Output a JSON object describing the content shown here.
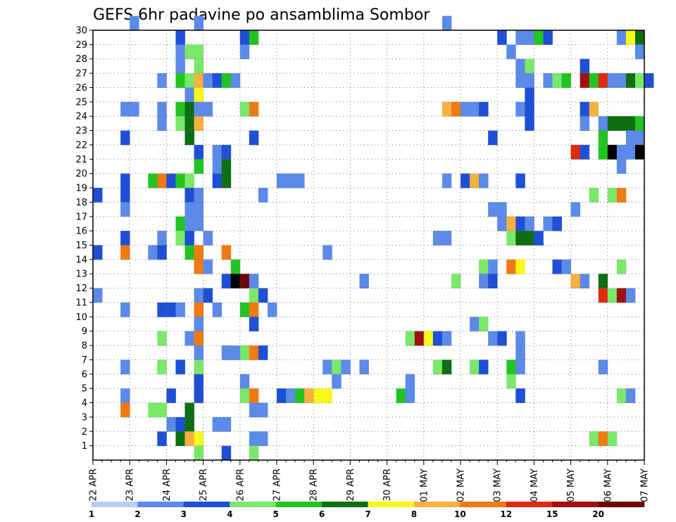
{
  "chart_data": {
    "type": "heatmap",
    "title": "GEFS 6hr padavine po ansamblima Sombor",
    "xlabel": "",
    "ylabel": "",
    "x_tick_labels": [
      "22 APR",
      "23 APR",
      "24 APR",
      "25 APR",
      "26 APR",
      "27 APR",
      "28 APR",
      "29 APR",
      "30 APR",
      "01 MAY",
      "02 MAY",
      "03 MAY",
      "04 MAY",
      "05 MAY",
      "06 MAY",
      "07 MAY"
    ],
    "x_steps_per_day": 4,
    "x_step_hours": 6,
    "x_range_steps": [
      0,
      60
    ],
    "y_tick_labels": [
      "1",
      "2",
      "3",
      "4",
      "5",
      "6",
      "7",
      "8",
      "9",
      "10",
      "11",
      "12",
      "13",
      "14",
      "15",
      "16",
      "17",
      "18",
      "19",
      "20",
      "21",
      "22",
      "23",
      "24",
      "25",
      "26",
      "27",
      "28",
      "29",
      "30"
    ],
    "y_range": [
      0,
      30
    ],
    "grid": true,
    "colorbar": {
      "position": "bottom",
      "levels": [
        "1",
        "2",
        "3",
        "4",
        "5",
        "6",
        "7",
        "8",
        "10",
        "12",
        "15",
        "20"
      ],
      "colors": [
        "#b8cdf5",
        "#5b8ae8",
        "#1f4fd6",
        "#7ae86a",
        "#22c422",
        "#0d6e12",
        "#f8f81a",
        "#f8b040",
        "#f07a12",
        "#e02810",
        "#a01010",
        "#6a0a0a"
      ]
    },
    "cells": [
      [
        30,
        4,
        1
      ],
      [
        30,
        11,
        1
      ],
      [
        30,
        38,
        1
      ],
      [
        29,
        9,
        2
      ],
      [
        29,
        16,
        2
      ],
      [
        29,
        17,
        4
      ],
      [
        29,
        44,
        2
      ],
      [
        29,
        46,
        1
      ],
      [
        29,
        47,
        1
      ],
      [
        29,
        48,
        4
      ],
      [
        29,
        49,
        2
      ],
      [
        29,
        57,
        1
      ],
      [
        29,
        58,
        6
      ],
      [
        29,
        59,
        5
      ],
      [
        28,
        9,
        1
      ],
      [
        28,
        10,
        3
      ],
      [
        28,
        11,
        3
      ],
      [
        28,
        16,
        1
      ],
      [
        28,
        45,
        1
      ],
      [
        28,
        59,
        1
      ],
      [
        27,
        9,
        1
      ],
      [
        27,
        11,
        3
      ],
      [
        27,
        46,
        1
      ],
      [
        27,
        47,
        3
      ],
      [
        27,
        53,
        2
      ],
      [
        26,
        7,
        1
      ],
      [
        26,
        9,
        4
      ],
      [
        26,
        10,
        3
      ],
      [
        26,
        11,
        7
      ],
      [
        26,
        12,
        1
      ],
      [
        26,
        13,
        2
      ],
      [
        26,
        14,
        4
      ],
      [
        26,
        15,
        1
      ],
      [
        26,
        46,
        1
      ],
      [
        26,
        47,
        1
      ],
      [
        26,
        49,
        1
      ],
      [
        26,
        50,
        3
      ],
      [
        26,
        51,
        4
      ],
      [
        26,
        53,
        10
      ],
      [
        26,
        54,
        4
      ],
      [
        26,
        55,
        9
      ],
      [
        26,
        56,
        1
      ],
      [
        26,
        57,
        1
      ],
      [
        26,
        58,
        5
      ],
      [
        26,
        59,
        3
      ],
      [
        26,
        60,
        2
      ],
      [
        25,
        10,
        1
      ],
      [
        25,
        11,
        6
      ],
      [
        25,
        47,
        2
      ],
      [
        24,
        3,
        1
      ],
      [
        24,
        4,
        1
      ],
      [
        24,
        7,
        1
      ],
      [
        24,
        9,
        4
      ],
      [
        24,
        10,
        5
      ],
      [
        24,
        11,
        1
      ],
      [
        24,
        12,
        1
      ],
      [
        24,
        16,
        3
      ],
      [
        24,
        17,
        8
      ],
      [
        24,
        38,
        7
      ],
      [
        24,
        39,
        8
      ],
      [
        24,
        40,
        1
      ],
      [
        24,
        41,
        1
      ],
      [
        24,
        42,
        2
      ],
      [
        24,
        46,
        1
      ],
      [
        24,
        47,
        2
      ],
      [
        24,
        53,
        2
      ],
      [
        24,
        54,
        7
      ],
      [
        23,
        7,
        1
      ],
      [
        23,
        9,
        3
      ],
      [
        23,
        10,
        5
      ],
      [
        23,
        11,
        7
      ],
      [
        23,
        47,
        2
      ],
      [
        23,
        53,
        1
      ],
      [
        23,
        55,
        1
      ],
      [
        23,
        56,
        5
      ],
      [
        23,
        57,
        5
      ],
      [
        23,
        58,
        5
      ],
      [
        23,
        59,
        4
      ],
      [
        22,
        3,
        2
      ],
      [
        22,
        10,
        5
      ],
      [
        22,
        17,
        2
      ],
      [
        22,
        43,
        2
      ],
      [
        22,
        55,
        4
      ],
      [
        22,
        58,
        1
      ],
      [
        22,
        59,
        1
      ],
      [
        21,
        11,
        2
      ],
      [
        21,
        13,
        1
      ],
      [
        21,
        14,
        2
      ],
      [
        21,
        52,
        9
      ],
      [
        21,
        53,
        2
      ],
      [
        21,
        55,
        4
      ],
      [
        21,
        56,
        12
      ],
      [
        21,
        57,
        1
      ],
      [
        21,
        58,
        1
      ],
      [
        21,
        59,
        12
      ],
      [
        20,
        11,
        4
      ],
      [
        20,
        13,
        1
      ],
      [
        20,
        14,
        5
      ],
      [
        20,
        57,
        1
      ],
      [
        19,
        3,
        2
      ],
      [
        19,
        6,
        4
      ],
      [
        19,
        7,
        8
      ],
      [
        19,
        8,
        2
      ],
      [
        19,
        9,
        4
      ],
      [
        19,
        10,
        3
      ],
      [
        19,
        13,
        2
      ],
      [
        19,
        14,
        5
      ],
      [
        19,
        20,
        1
      ],
      [
        19,
        21,
        1
      ],
      [
        19,
        22,
        1
      ],
      [
        19,
        38,
        1
      ],
      [
        19,
        40,
        2
      ],
      [
        19,
        41,
        7
      ],
      [
        19,
        42,
        1
      ],
      [
        19,
        46,
        2
      ],
      [
        18,
        0,
        2
      ],
      [
        18,
        3,
        2
      ],
      [
        18,
        10,
        2
      ],
      [
        18,
        11,
        1
      ],
      [
        18,
        18,
        1
      ],
      [
        18,
        54,
        3
      ],
      [
        18,
        56,
        3
      ],
      [
        18,
        57,
        8
      ],
      [
        17,
        3,
        1
      ],
      [
        17,
        10,
        1
      ],
      [
        17,
        11,
        1
      ],
      [
        17,
        43,
        1
      ],
      [
        17,
        44,
        1
      ],
      [
        17,
        52,
        1
      ],
      [
        16,
        9,
        4
      ],
      [
        16,
        10,
        1
      ],
      [
        16,
        11,
        1
      ],
      [
        16,
        44,
        1
      ],
      [
        16,
        45,
        7
      ],
      [
        16,
        46,
        2
      ],
      [
        16,
        47,
        1
      ],
      [
        16,
        49,
        1
      ],
      [
        16,
        50,
        2
      ],
      [
        15,
        3,
        2
      ],
      [
        15,
        7,
        1
      ],
      [
        15,
        9,
        3
      ],
      [
        15,
        10,
        2
      ],
      [
        15,
        12,
        1
      ],
      [
        15,
        37,
        1
      ],
      [
        15,
        38,
        1
      ],
      [
        15,
        45,
        3
      ],
      [
        15,
        46,
        5
      ],
      [
        15,
        47,
        5
      ],
      [
        15,
        48,
        2
      ],
      [
        14,
        0,
        2
      ],
      [
        14,
        3,
        8
      ],
      [
        14,
        6,
        1
      ],
      [
        14,
        7,
        2
      ],
      [
        14,
        10,
        4
      ],
      [
        14,
        11,
        8
      ],
      [
        14,
        14,
        8
      ],
      [
        14,
        25,
        1
      ],
      [
        13,
        11,
        8
      ],
      [
        13,
        12,
        1
      ],
      [
        13,
        15,
        4
      ],
      [
        13,
        42,
        3
      ],
      [
        13,
        43,
        1
      ],
      [
        13,
        45,
        8
      ],
      [
        13,
        46,
        6
      ],
      [
        13,
        50,
        2
      ],
      [
        13,
        51,
        1
      ],
      [
        13,
        57,
        3
      ],
      [
        12,
        14,
        2
      ],
      [
        12,
        15,
        12
      ],
      [
        12,
        16,
        11
      ],
      [
        12,
        17,
        1
      ],
      [
        12,
        29,
        1
      ],
      [
        12,
        39,
        3
      ],
      [
        12,
        42,
        1
      ],
      [
        12,
        43,
        2
      ],
      [
        12,
        52,
        7
      ],
      [
        12,
        53,
        1
      ],
      [
        12,
        55,
        5
      ],
      [
        11,
        0,
        1
      ],
      [
        11,
        11,
        1
      ],
      [
        11,
        12,
        2
      ],
      [
        11,
        17,
        3
      ],
      [
        11,
        18,
        2
      ],
      [
        11,
        55,
        9
      ],
      [
        11,
        56,
        3
      ],
      [
        11,
        57,
        10
      ],
      [
        11,
        58,
        1
      ],
      [
        10,
        3,
        1
      ],
      [
        10,
        7,
        2
      ],
      [
        10,
        8,
        2
      ],
      [
        10,
        9,
        1
      ],
      [
        10,
        11,
        8
      ],
      [
        10,
        13,
        1
      ],
      [
        10,
        16,
        4
      ],
      [
        10,
        17,
        8
      ],
      [
        10,
        19,
        1
      ],
      [
        9,
        11,
        1
      ],
      [
        9,
        17,
        2
      ],
      [
        9,
        41,
        1
      ],
      [
        9,
        42,
        3
      ],
      [
        8,
        7,
        3
      ],
      [
        8,
        10,
        1
      ],
      [
        8,
        11,
        8
      ],
      [
        8,
        34,
        3
      ],
      [
        8,
        35,
        10
      ],
      [
        8,
        36,
        6
      ],
      [
        8,
        37,
        2
      ],
      [
        8,
        38,
        1
      ],
      [
        8,
        43,
        1
      ],
      [
        8,
        44,
        2
      ],
      [
        8,
        46,
        1
      ],
      [
        7,
        11,
        1
      ],
      [
        7,
        14,
        1
      ],
      [
        7,
        15,
        1
      ],
      [
        7,
        16,
        3
      ],
      [
        7,
        17,
        8
      ],
      [
        7,
        18,
        2
      ],
      [
        7,
        46,
        1
      ],
      [
        6,
        3,
        1
      ],
      [
        6,
        7,
        3
      ],
      [
        6,
        9,
        2
      ],
      [
        6,
        11,
        3
      ],
      [
        6,
        25,
        1
      ],
      [
        6,
        26,
        3
      ],
      [
        6,
        27,
        1
      ],
      [
        6,
        29,
        1
      ],
      [
        6,
        37,
        3
      ],
      [
        6,
        38,
        5
      ],
      [
        6,
        41,
        3
      ],
      [
        6,
        42,
        2
      ],
      [
        6,
        45,
        4
      ],
      [
        6,
        46,
        1
      ],
      [
        6,
        55,
        1
      ],
      [
        5,
        11,
        2
      ],
      [
        5,
        16,
        1
      ],
      [
        5,
        26,
        1
      ],
      [
        5,
        34,
        1
      ],
      [
        5,
        45,
        3
      ],
      [
        4,
        3,
        1
      ],
      [
        4,
        8,
        2
      ],
      [
        4,
        11,
        2
      ],
      [
        4,
        16,
        3
      ],
      [
        4,
        17,
        8
      ],
      [
        4,
        20,
        2
      ],
      [
        4,
        21,
        1
      ],
      [
        4,
        22,
        4
      ],
      [
        4,
        23,
        7
      ],
      [
        4,
        24,
        6
      ],
      [
        4,
        25,
        6
      ],
      [
        4,
        33,
        4
      ],
      [
        4,
        34,
        1
      ],
      [
        4,
        46,
        2
      ],
      [
        4,
        57,
        3
      ],
      [
        4,
        58,
        1
      ],
      [
        3,
        3,
        8
      ],
      [
        3,
        6,
        3
      ],
      [
        3,
        7,
        3
      ],
      [
        3,
        10,
        5
      ],
      [
        3,
        17,
        1
      ],
      [
        3,
        18,
        1
      ],
      [
        2,
        8,
        1
      ],
      [
        2,
        9,
        2
      ],
      [
        2,
        10,
        5
      ],
      [
        2,
        13,
        1
      ],
      [
        2,
        14,
        1
      ],
      [
        1,
        7,
        2
      ],
      [
        1,
        9,
        5
      ],
      [
        1,
        10,
        7
      ],
      [
        1,
        11,
        6
      ],
      [
        1,
        17,
        1
      ],
      [
        1,
        18,
        1
      ],
      [
        1,
        54,
        3
      ],
      [
        1,
        55,
        8
      ],
      [
        1,
        56,
        3
      ],
      [
        0,
        11,
        3
      ],
      [
        0,
        14,
        2
      ],
      [
        0,
        17,
        3
      ]
    ]
  }
}
